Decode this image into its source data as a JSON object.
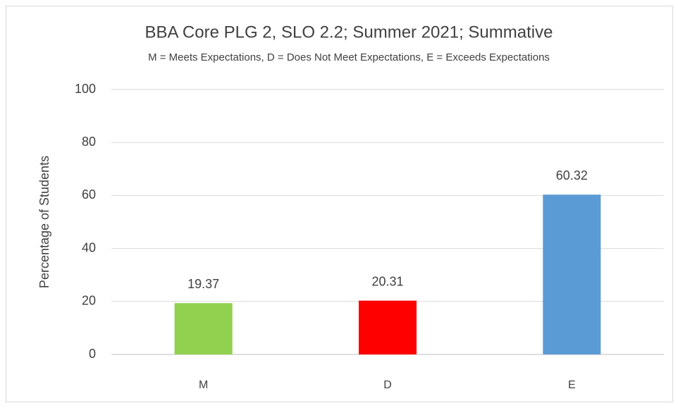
{
  "chart_data": {
    "type": "bar",
    "title": "BBA Core PLG 2, SLO 2.2; Summer 2021; Summative",
    "subtitle": "M = Meets Expectations, D = Does Not Meet Expectations, E = Exceeds Expectations",
    "y_label": "Percentage of Students",
    "categories": [
      "M",
      "D",
      "E"
    ],
    "values": [
      19.37,
      20.31,
      60.32
    ],
    "colors": [
      "#92d050",
      "#ff0000",
      "#5b9bd5"
    ],
    "ylim": [
      0,
      100
    ],
    "yticks": [
      0,
      20,
      40,
      60,
      80,
      100
    ],
    "grid": true
  }
}
